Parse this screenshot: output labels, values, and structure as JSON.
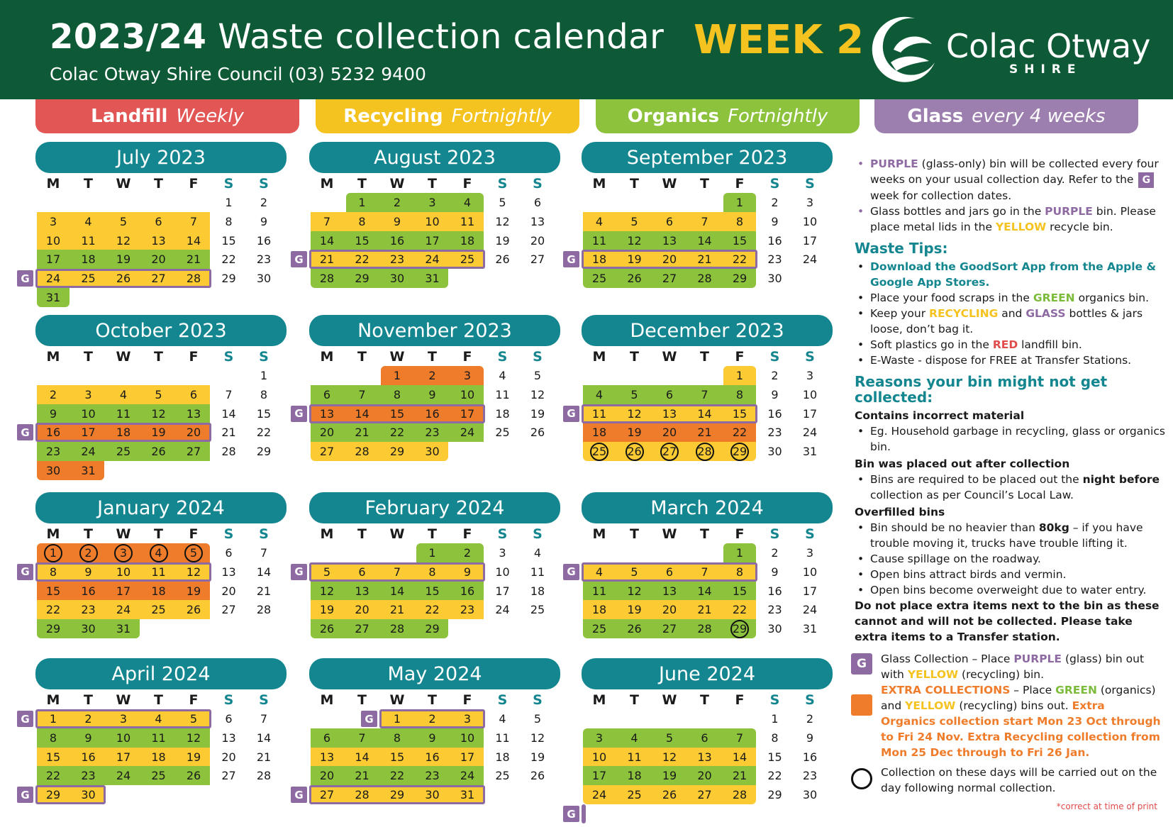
{
  "header": {
    "title_year": "2023/24",
    "title_rest": "Waste collection calendar",
    "week": "WEEK 2",
    "subtitle": "Colac Otway Shire Council (03) 5232 9400",
    "logo_name": "Colac Otway",
    "logo_shire": "SHIRE"
  },
  "bins": [
    {
      "name": "Landfill",
      "freq": "Weekly",
      "color": "#e35656"
    },
    {
      "name": "Recycling",
      "freq": "Fortnightly",
      "color": "#f5c320"
    },
    {
      "name": "Organics",
      "freq": "Fortnightly",
      "color": "#8cc23c"
    },
    {
      "name": "Glass",
      "freq": "every 4 weeks",
      "color": "#9c7fae"
    }
  ],
  "colors": {
    "recycling": "#fccb33",
    "organics": "#8cc23c",
    "extra": "#ef7c2a",
    "glass": "#8e6aa3",
    "teal": "#14868f"
  },
  "dow": [
    "M",
    "T",
    "W",
    "T",
    "F",
    "S",
    "S"
  ],
  "glass_tag": "G",
  "months": [
    {
      "title": "July 2023",
      "days": 31,
      "start": 5,
      "bands": [
        "G",
        "Y",
        "Y",
        "G",
        "Y",
        "G"
      ],
      "glass": [
        4
      ],
      "circles": []
    },
    {
      "title": "August 2023",
      "days": 31,
      "start": 1,
      "bands": [
        "G",
        "Y",
        "G",
        "Y",
        "G"
      ],
      "glass": [
        3
      ],
      "circles": []
    },
    {
      "title": "September 2023",
      "days": 30,
      "start": 4,
      "bands": [
        "G",
        "Y",
        "G",
        "Y",
        "G"
      ],
      "glass": [
        3
      ],
      "circles": []
    },
    {
      "title": "October 2023",
      "days": 31,
      "start": 6,
      "bands": [
        "G",
        "Y",
        "G",
        "O",
        "G",
        "O"
      ],
      "glass": [
        3
      ],
      "circles": []
    },
    {
      "title": "November 2023",
      "days": 30,
      "start": 2,
      "bands": [
        "O",
        "G",
        "O",
        "G",
        "Y"
      ],
      "glass": [
        2
      ],
      "circles": []
    },
    {
      "title": "December 2023",
      "days": 31,
      "start": 4,
      "bands": [
        "Y",
        "G",
        "Y",
        "O",
        "Y"
      ],
      "glass": [
        2
      ],
      "circles": [
        25,
        26,
        27,
        28,
        29
      ]
    },
    {
      "title": "January 2024",
      "days": 31,
      "start": 0,
      "bands": [
        "O",
        "Y",
        "O",
        "Y",
        "G"
      ],
      "glass": [
        1
      ],
      "circles": [
        1,
        2,
        3,
        4,
        5
      ]
    },
    {
      "title": "February 2024",
      "days": 29,
      "start": 3,
      "bands": [
        "G",
        "Y",
        "G",
        "Y",
        "G"
      ],
      "glass": [
        1
      ],
      "circles": []
    },
    {
      "title": "March 2024",
      "days": 31,
      "start": 4,
      "bands": [
        "G",
        "Y",
        "G",
        "Y",
        "G"
      ],
      "glass": [
        1
      ],
      "circles": [
        29
      ]
    },
    {
      "title": "April 2024",
      "days": 30,
      "start": 0,
      "bands": [
        "Y",
        "G",
        "Y",
        "G",
        "Y"
      ],
      "glass": [
        0,
        4
      ],
      "circles": []
    },
    {
      "title": "May 2024",
      "days": 31,
      "start": 2,
      "bands": [
        "Y",
        "G",
        "Y",
        "G",
        "Y"
      ],
      "glass": [
        0,
        4
      ],
      "circles": []
    },
    {
      "title": "June 2024",
      "days": 30,
      "start": 5,
      "bands": [
        "",
        "G",
        "Y",
        "G",
        "Y",
        "G"
      ],
      "glass": [
        5
      ],
      "circles": []
    }
  ],
  "panel": {
    "glass_info": [
      {
        "parts": [
          {
            "t": "PURPLE",
            "c": "purple"
          },
          {
            "t": " (glass-only) bin will be collected every four weeks on your usual collection day. Refer to the "
          },
          {
            "t": "G",
            "c": "tag"
          },
          {
            "t": " week for collection dates."
          }
        ]
      },
      {
        "parts": [
          {
            "t": "Glass bottles and jars go in the "
          },
          {
            "t": "PURPLE",
            "c": "purple"
          },
          {
            "t": " bin. Please place metal lids in the "
          },
          {
            "t": "YELLOW",
            "c": "yellow"
          },
          {
            "t": " recycle bin."
          }
        ]
      }
    ],
    "tips_heading": "Waste Tips:",
    "tips": [
      {
        "parts": [
          {
            "t": "Download the GoodSort App from the Apple & Google App Stores.",
            "c": "tipb"
          }
        ]
      },
      {
        "parts": [
          {
            "t": "Place your food scraps in the "
          },
          {
            "t": "GREEN",
            "c": "green"
          },
          {
            "t": " organics bin."
          }
        ]
      },
      {
        "parts": [
          {
            "t": "Keep your "
          },
          {
            "t": "RECYCLING",
            "c": "yellow"
          },
          {
            "t": " and "
          },
          {
            "t": "GLASS",
            "c": "purple"
          },
          {
            "t": " bottles & jars loose, don’t bag it."
          }
        ]
      },
      {
        "parts": [
          {
            "t": "Soft plastics go in the "
          },
          {
            "t": "RED",
            "c": "red"
          },
          {
            "t": " landfill bin."
          }
        ]
      },
      {
        "parts": [
          {
            "t": "E-Waste - dispose for FREE at Transfer Stations."
          }
        ]
      }
    ],
    "reasons_heading": "Reasons your bin might not get collected:",
    "reasons": [
      {
        "sub": "Contains incorrect material",
        "items": [
          [
            {
              "t": "Eg. Household garbage in recycling, glass or organics bin."
            }
          ]
        ]
      },
      {
        "sub": "Bin was placed out after collection",
        "items": [
          [
            {
              "t": "Bins are required to be placed out the "
            },
            {
              "t": "night before",
              "c": "bold"
            },
            {
              "t": " collection as per Council’s Local Law."
            }
          ]
        ]
      },
      {
        "sub": "Overfilled bins",
        "items": [
          [
            {
              "t": "Bin should be no heavier than "
            },
            {
              "t": "80kg",
              "c": "bold"
            },
            {
              "t": " – if you have trouble moving it, trucks have trouble lifting it."
            }
          ],
          [
            {
              "t": "Cause spillage on the roadway."
            }
          ],
          [
            {
              "t": "Open bins attract birds and vermin."
            }
          ],
          [
            {
              "t": "Open bins become overweight due to water entry."
            }
          ]
        ]
      }
    ],
    "final_note": "Do not place extra items next to the bin as these cannot and will not be collected. Please take extra items to a Transfer station."
  },
  "legend": {
    "glass": [
      {
        "t": "Glass Collection – Place "
      },
      {
        "t": "PURPLE",
        "c": "purple"
      },
      {
        "t": " (glass) bin out with "
      },
      {
        "t": "YELLOW",
        "c": "yellow"
      },
      {
        "t": " (recycling) bin."
      }
    ],
    "extra": [
      {
        "t": "EXTRA COLLECTIONS",
        "c": "orange"
      },
      {
        "t": " – Place "
      },
      {
        "t": "GREEN",
        "c": "green"
      },
      {
        "t": " (organics) and "
      },
      {
        "t": "YELLOW",
        "c": "yellow"
      },
      {
        "t": " (recycling) bins out. "
      },
      {
        "t": "Extra Organics collection start Mon 23 Oct through to Fri 24 Nov. Extra Recycling collection from Mon 25 Dec through to Fri 26 Jan.",
        "c": "orange"
      }
    ],
    "circle": [
      {
        "t": "Collection on these days will be carried out on the day following normal collection."
      }
    ],
    "footnote": "*correct at time of print"
  }
}
